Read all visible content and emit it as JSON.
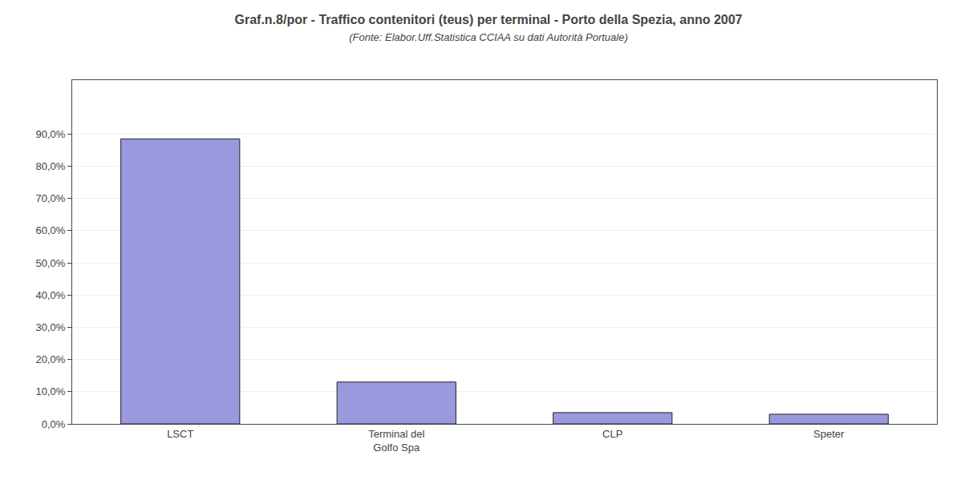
{
  "chart_data": {
    "type": "bar",
    "title": "Graf.n.8/por - Traffico contenitori (teus) per terminal - Porto della Spezia, anno 2007",
    "subtitle": "(Fonte: Elabor.Uff.Statistica CCIAA su dati Autorità Portuale)",
    "categories": [
      "LSCT",
      "Terminal del\nGolfo Spa",
      "CLP",
      "Speter"
    ],
    "values": [
      88.5,
      13.0,
      3.5,
      3.0
    ],
    "color": "#9999dd",
    "ylim": [
      0,
      106.75
    ],
    "yticks": [
      {
        "value": 0,
        "label": "0,0%"
      },
      {
        "value": 10,
        "label": "10,0%"
      },
      {
        "value": 20,
        "label": "20,0%"
      },
      {
        "value": 30,
        "label": "30,0%"
      },
      {
        "value": 40,
        "label": "40,0%"
      },
      {
        "value": 50,
        "label": "50,0%"
      },
      {
        "value": 60,
        "label": "60,0%"
      },
      {
        "value": 70,
        "label": "70,0%"
      },
      {
        "value": 80,
        "label": "80,0%"
      },
      {
        "value": 90,
        "label": "90,0%"
      }
    ],
    "grid": true
  }
}
